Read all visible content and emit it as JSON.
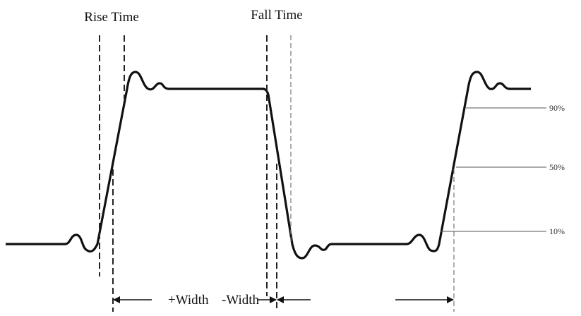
{
  "labels": {
    "rise_time": "Rise Time",
    "fall_time": "Fall Time"
  },
  "levels": {
    "high": "90%",
    "mid": "50%",
    "low": "10%"
  },
  "widths": {
    "positive": "+Width",
    "negative": "-Width"
  }
}
